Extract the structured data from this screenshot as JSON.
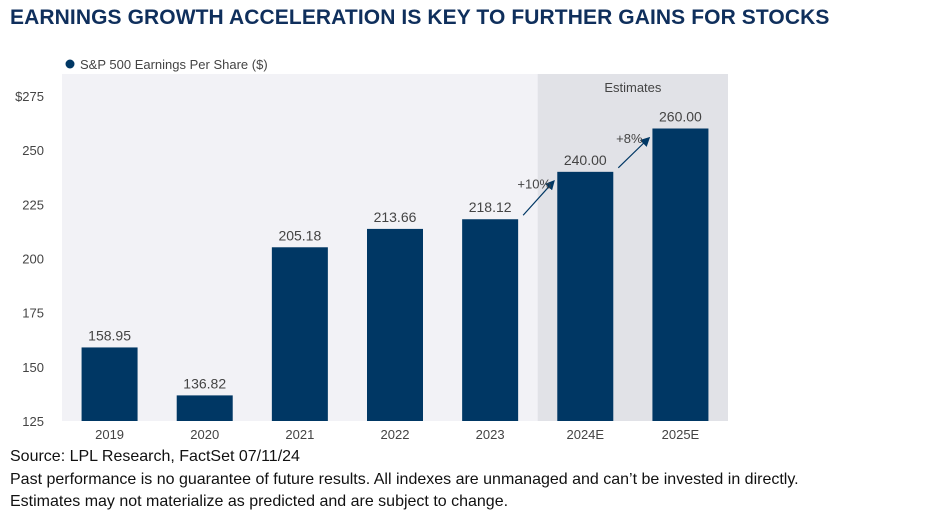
{
  "title": "EARNINGS GROWTH ACCELERATION IS KEY TO FURTHER GAINS FOR STOCKS",
  "colors": {
    "bar": "#003764",
    "plot_background": "#f2f2f6",
    "estimates_background": "#e1e2e7",
    "title": "#0f2f5c",
    "text": "#444444"
  },
  "chart_data": {
    "type": "bar",
    "title": "",
    "legend": [
      {
        "name": "S&P 500 Earnings Per Share ($)",
        "position": "top-left"
      }
    ],
    "series": [
      {
        "name": "S&P 500 Earnings Per Share ($)"
      }
    ],
    "categories": [
      "2019",
      "2020",
      "2021",
      "2022",
      "2023",
      "2024E",
      "2025E"
    ],
    "values": [
      158.95,
      136.82,
      205.18,
      213.66,
      218.12,
      240.0,
      260.0
    ],
    "value_labels": [
      "158.95",
      "136.82",
      "205.18",
      "213.66",
      "218.12",
      "240.00",
      "260.00"
    ],
    "ylim": [
      125,
      275
    ],
    "yticks": [
      125,
      150,
      175,
      200,
      225,
      250,
      275
    ],
    "ytick_labels": [
      "125",
      "150",
      "175",
      "200",
      "225",
      "250",
      "$275"
    ],
    "xlabel": "",
    "ylabel": "",
    "grid": false,
    "estimates_region": {
      "label": "Estimates",
      "categories": [
        "2024E",
        "2025E"
      ]
    },
    "annotations": [
      {
        "text": "+10%",
        "from": "2023",
        "to": "2024E"
      },
      {
        "text": "+8%",
        "from": "2024E",
        "to": "2025E"
      }
    ]
  },
  "footer": {
    "source": "Source: LPL Research, FactSet 07/11/24",
    "disclaimer1": "Past performance is no guarantee of future results. All indexes are unmanaged and can’t be invested in directly.",
    "disclaimer2": "Estimates may not materialize as predicted and are subject to change."
  }
}
